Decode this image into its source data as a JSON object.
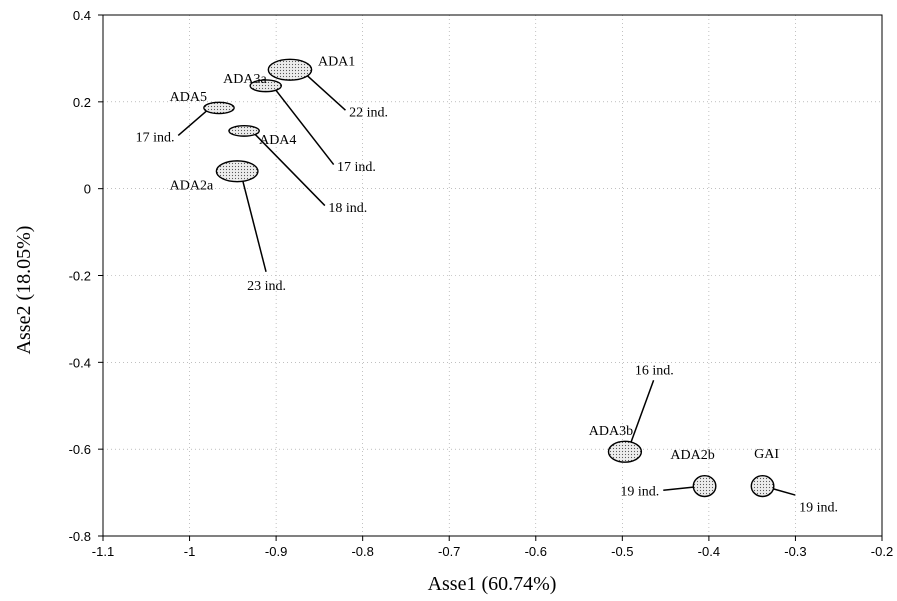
{
  "chart_data": {
    "type": "scatter",
    "xlabel": "Asse1 (60.74%)",
    "ylabel": "Asse2 (18.05%)",
    "xlim": [
      -1.1,
      -0.2
    ],
    "ylim": [
      -0.8,
      0.4
    ],
    "xticks": [
      -1.1,
      -1,
      -0.9,
      -0.8,
      -0.7,
      -0.6,
      -0.5,
      -0.4,
      -0.3,
      -0.2
    ],
    "yticks": [
      0.4,
      0.2,
      0,
      -0.2,
      -0.4,
      -0.6,
      -0.8
    ],
    "xtick_labels": [
      "-1.1",
      "-1",
      "-0.9",
      "-0.8",
      "-0.7",
      "-0.6",
      "-0.5",
      "-0.4",
      "-0.3",
      "-0.2"
    ],
    "ytick_labels": [
      "0.4",
      "0.2",
      "0",
      "-0.2",
      "-0.4",
      "-0.6",
      "-0.8"
    ],
    "grid": true,
    "points": [
      {
        "label": "ADA1",
        "x": -0.884,
        "y": 0.274,
        "rx": 0.025,
        "ry": 0.024,
        "n": "22 ind.",
        "n_x": -0.818,
        "n_y": 0.178
      },
      {
        "label": "ADA3a",
        "x": -0.912,
        "y": 0.237,
        "rx": 0.018,
        "ry": 0.0135,
        "n": "17 ind.",
        "n_x": -0.832,
        "n_y": 0.052
      },
      {
        "label": "ADA5",
        "x": -0.966,
        "y": 0.186,
        "rx": 0.0175,
        "ry": 0.013,
        "n": "17 ind.",
        "n_x": -1.015,
        "n_y": 0.12
      },
      {
        "label": "ADA4",
        "x": -0.937,
        "y": 0.133,
        "rx": 0.0175,
        "ry": 0.012,
        "n": "18 ind.",
        "n_x": -0.842,
        "n_y": -0.042
      },
      {
        "label": "ADA2a",
        "x": -0.945,
        "y": 0.04,
        "rx": 0.024,
        "ry": 0.024,
        "n": "23 ind.",
        "n_x": -0.911,
        "n_y": -0.196
      },
      {
        "label": "ADA3b",
        "x": -0.497,
        "y": -0.606,
        "rx": 0.019,
        "ry": 0.024,
        "n": "16 ind.",
        "n_x": -0.463,
        "n_y": -0.437
      },
      {
        "label": "ADA2b",
        "x": -0.405,
        "y": -0.685,
        "rx": 0.013,
        "ry": 0.024,
        "n": "19 ind.",
        "n_x": -0.455,
        "n_y": -0.695
      },
      {
        "label": "GAI",
        "x": -0.338,
        "y": -0.685,
        "rx": 0.013,
        "ry": 0.024,
        "n": "19 ind.",
        "n_x": -0.298,
        "n_y": -0.707
      }
    ]
  }
}
